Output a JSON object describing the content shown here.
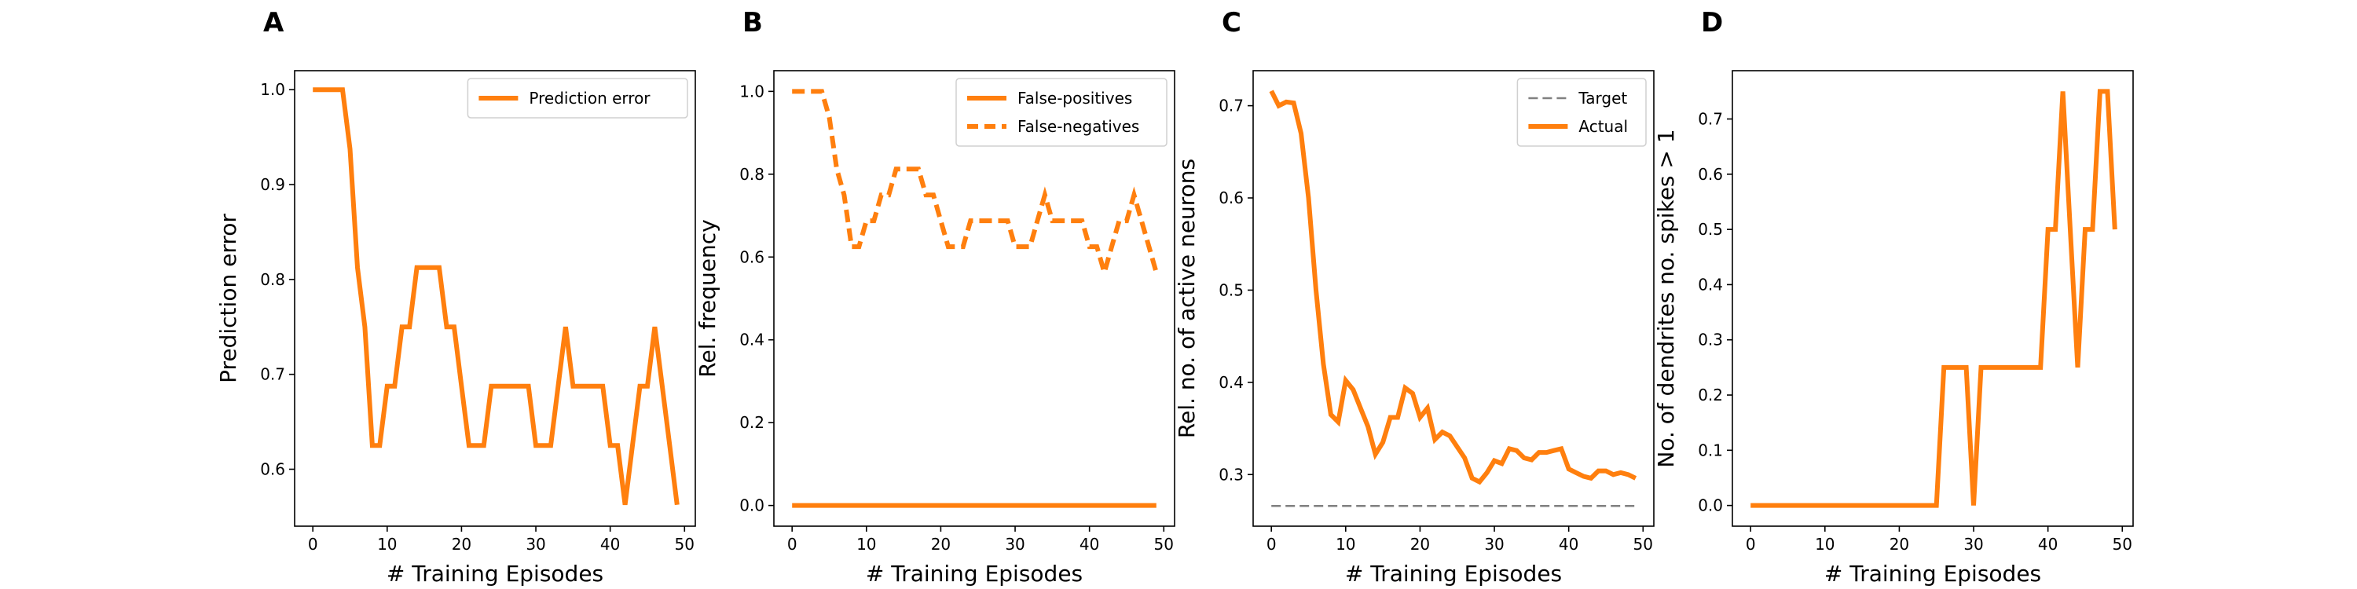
{
  "chart_data": [
    {
      "panel": "A",
      "type": "line",
      "xlabel": "# Training Episodes",
      "ylabel": "Prediction error",
      "xlim": [
        -2.45,
        51.45
      ],
      "ylim": [
        0.54,
        1.02
      ],
      "xticks": [
        0,
        10,
        20,
        30,
        40,
        50
      ],
      "yticks": [
        0.6,
        0.7,
        0.8,
        0.9,
        1.0
      ],
      "ytick_format": 1,
      "grid": false,
      "legend": "upper right",
      "series": [
        {
          "name": "Prediction error",
          "color": "#ff7f0e",
          "dash": "solid",
          "x": [
            0,
            1,
            2,
            3,
            4,
            5,
            6,
            7,
            8,
            9,
            10,
            11,
            12,
            13,
            14,
            15,
            16,
            17,
            18,
            19,
            20,
            21,
            22,
            23,
            24,
            25,
            26,
            27,
            28,
            29,
            30,
            31,
            32,
            33,
            34,
            35,
            36,
            37,
            38,
            39,
            40,
            41,
            42,
            43,
            44,
            45,
            46,
            47,
            48,
            49
          ],
          "y": [
            1.0,
            1.0,
            1.0,
            1.0,
            1.0,
            0.9375,
            0.8125,
            0.75,
            0.625,
            0.625,
            0.6875,
            0.6875,
            0.75,
            0.75,
            0.8125,
            0.8125,
            0.8125,
            0.8125,
            0.75,
            0.75,
            0.6875,
            0.625,
            0.625,
            0.625,
            0.6875,
            0.6875,
            0.6875,
            0.6875,
            0.6875,
            0.6875,
            0.625,
            0.625,
            0.625,
            0.6875,
            0.75,
            0.6875,
            0.6875,
            0.6875,
            0.6875,
            0.6875,
            0.625,
            0.625,
            0.5625,
            0.625,
            0.6875,
            0.6875,
            0.75,
            0.6875,
            0.625,
            0.5625
          ]
        }
      ]
    },
    {
      "panel": "B",
      "type": "line",
      "xlabel": "# Training Episodes",
      "ylabel": "Rel. frequency",
      "xlim": [
        -2.45,
        51.45
      ],
      "ylim": [
        -0.05,
        1.05
      ],
      "xticks": [
        0,
        10,
        20,
        30,
        40,
        50
      ],
      "yticks": [
        0.0,
        0.2,
        0.4,
        0.6,
        0.8,
        1.0
      ],
      "ytick_format": 1,
      "grid": false,
      "legend": "upper right",
      "series": [
        {
          "name": "False-positives",
          "color": "#ff7f0e",
          "dash": "solid",
          "x": [
            0,
            49
          ],
          "y": [
            0.0,
            0.0
          ]
        },
        {
          "name": "False-negatives",
          "color": "#ff7f0e",
          "dash": "dashed",
          "x": [
            0,
            1,
            2,
            3,
            4,
            5,
            6,
            7,
            8,
            9,
            10,
            11,
            12,
            13,
            14,
            15,
            16,
            17,
            18,
            19,
            20,
            21,
            22,
            23,
            24,
            25,
            26,
            27,
            28,
            29,
            30,
            31,
            32,
            33,
            34,
            35,
            36,
            37,
            38,
            39,
            40,
            41,
            42,
            43,
            44,
            45,
            46,
            47,
            48,
            49
          ],
          "y": [
            1.0,
            1.0,
            1.0,
            1.0,
            1.0,
            0.9375,
            0.8125,
            0.75,
            0.625,
            0.625,
            0.6875,
            0.6875,
            0.75,
            0.75,
            0.8125,
            0.8125,
            0.8125,
            0.8125,
            0.75,
            0.75,
            0.6875,
            0.625,
            0.625,
            0.625,
            0.6875,
            0.6875,
            0.6875,
            0.6875,
            0.6875,
            0.6875,
            0.625,
            0.625,
            0.625,
            0.6875,
            0.75,
            0.6875,
            0.6875,
            0.6875,
            0.6875,
            0.6875,
            0.625,
            0.625,
            0.5625,
            0.625,
            0.6875,
            0.6875,
            0.75,
            0.6875,
            0.625,
            0.5625
          ]
        }
      ]
    },
    {
      "panel": "C",
      "type": "line",
      "xlabel": "# Training Episodes",
      "ylabel": "Rel. no. of active neurons",
      "xlim": [
        -2.45,
        51.45
      ],
      "ylim": [
        0.244,
        0.738
      ],
      "xticks": [
        0,
        10,
        20,
        30,
        40,
        50
      ],
      "yticks": [
        0.3,
        0.4,
        0.5,
        0.6,
        0.7
      ],
      "ytick_format": 1,
      "grid": false,
      "legend": "upper right",
      "series": [
        {
          "name": "Target",
          "color": "#808080",
          "dash": "dashed",
          "x": [
            0,
            49
          ],
          "y": [
            0.266,
            0.266
          ]
        },
        {
          "name": "Actual",
          "color": "#ff7f0e",
          "dash": "solid",
          "x": [
            0,
            1,
            2,
            3,
            4,
            5,
            6,
            7,
            8,
            9,
            10,
            11,
            12,
            13,
            14,
            15,
            16,
            17,
            18,
            19,
            20,
            21,
            22,
            23,
            24,
            25,
            26,
            27,
            28,
            29,
            30,
            31,
            32,
            33,
            34,
            35,
            36,
            37,
            38,
            39,
            40,
            41,
            42,
            43,
            44,
            45,
            46,
            47,
            48,
            49
          ],
          "y": [
            0.716,
            0.7,
            0.704,
            0.703,
            0.67,
            0.6,
            0.5,
            0.42,
            0.365,
            0.357,
            0.402,
            0.392,
            0.372,
            0.352,
            0.322,
            0.335,
            0.362,
            0.362,
            0.394,
            0.388,
            0.362,
            0.372,
            0.338,
            0.346,
            0.342,
            0.33,
            0.318,
            0.296,
            0.292,
            0.302,
            0.315,
            0.312,
            0.328,
            0.326,
            0.318,
            0.316,
            0.324,
            0.324,
            0.326,
            0.328,
            0.306,
            0.302,
            0.298,
            0.296,
            0.304,
            0.304,
            0.3,
            0.302,
            0.3,
            0.296
          ]
        }
      ]
    },
    {
      "panel": "D",
      "type": "line",
      "xlabel": "# Training Episodes",
      "ylabel": "No. of dendrites no. spikes > 1",
      "xlim": [
        -2.45,
        51.45
      ],
      "ylim": [
        -0.0375,
        0.7875
      ],
      "xticks": [
        0,
        10,
        20,
        30,
        40,
        50
      ],
      "yticks": [
        0.0,
        0.1,
        0.2,
        0.3,
        0.4,
        0.5,
        0.6,
        0.7
      ],
      "ytick_format": 1,
      "grid": false,
      "legend": "none",
      "series": [
        {
          "name": "",
          "color": "#ff7f0e",
          "dash": "solid",
          "x": [
            0,
            1,
            2,
            3,
            4,
            5,
            6,
            7,
            8,
            9,
            10,
            11,
            12,
            13,
            14,
            15,
            16,
            17,
            18,
            19,
            20,
            21,
            22,
            23,
            24,
            25,
            26,
            27,
            28,
            29,
            30,
            31,
            32,
            33,
            34,
            35,
            36,
            37,
            38,
            39,
            40,
            41,
            42,
            43,
            44,
            45,
            46,
            47,
            48,
            49
          ],
          "y": [
            0,
            0,
            0,
            0,
            0,
            0,
            0,
            0,
            0,
            0,
            0,
            0,
            0,
            0,
            0,
            0,
            0,
            0,
            0,
            0,
            0,
            0,
            0,
            0,
            0,
            0,
            0.25,
            0.25,
            0.25,
            0.25,
            0,
            0.25,
            0.25,
            0.25,
            0.25,
            0.25,
            0.25,
            0.25,
            0.25,
            0.25,
            0.5,
            0.5,
            0.75,
            0.5,
            0.25,
            0.5,
            0.5,
            0.75,
            0.75,
            0.5
          ]
        }
      ]
    }
  ]
}
